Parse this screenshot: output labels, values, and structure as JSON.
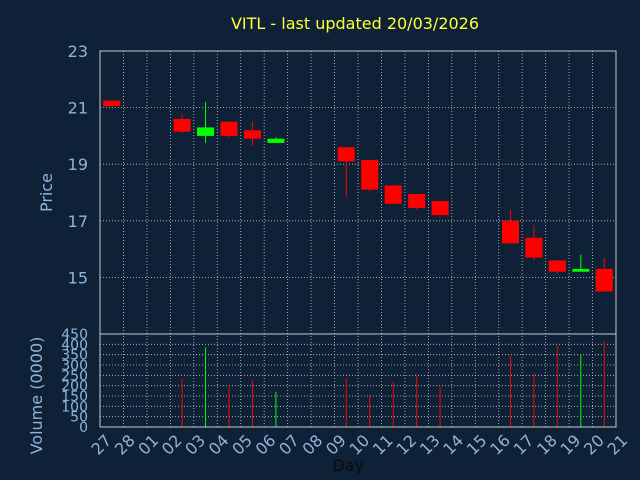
{
  "chart_data": {
    "type": "candlestick",
    "title": "VITL - last updated 20/03/2026",
    "xlabel": "Day",
    "price_panel": {
      "ylabel": "Price",
      "ylim": [
        13,
        23
      ],
      "yticks": [
        "15",
        "17",
        "19",
        "21",
        "23"
      ]
    },
    "volume_panel": {
      "ylabel": "Volume (0000)",
      "ylim": [
        0,
        450
      ],
      "yticks": [
        "0",
        "50",
        "100",
        "150",
        "200",
        "250",
        "300",
        "350",
        "400",
        "450"
      ]
    },
    "x_ticks": [
      "27",
      "28",
      "01",
      "02",
      "03",
      "04",
      "05",
      "06",
      "07",
      "08",
      "09",
      "10",
      "11",
      "12",
      "13",
      "14",
      "15",
      "16",
      "17",
      "18",
      "19",
      "20",
      "21"
    ],
    "grid": true,
    "colors": {
      "background": "#0f2136",
      "grid": "#c8c8c8",
      "frame": "#c8c8c8",
      "up": "#00ff00",
      "down": "#ff0000",
      "text": "#8fb4d9",
      "title": "#ffff3a"
    },
    "candles": [
      {
        "x": 0,
        "open": 21.25,
        "high": 21.25,
        "low": 21.05,
        "close": 21.05,
        "volume": 0
      },
      {
        "x": 3,
        "open": 20.6,
        "high": 20.75,
        "low": 20.1,
        "close": 20.15,
        "volume": 235
      },
      {
        "x": 4,
        "open": 20.0,
        "high": 21.2,
        "low": 19.75,
        "close": 20.3,
        "volume": 385
      },
      {
        "x": 5,
        "open": 20.5,
        "high": 20.5,
        "low": 19.95,
        "close": 20.0,
        "volume": 195
      },
      {
        "x": 6,
        "open": 20.2,
        "high": 20.5,
        "low": 19.65,
        "close": 19.9,
        "volume": 225
      },
      {
        "x": 7,
        "open": 19.75,
        "high": 19.95,
        "low": 19.75,
        "close": 19.9,
        "volume": 170
      },
      {
        "x": 10,
        "open": 19.6,
        "high": 19.6,
        "low": 17.85,
        "close": 19.1,
        "volume": 235
      },
      {
        "x": 11,
        "open": 19.15,
        "high": 19.15,
        "low": 18.05,
        "close": 18.1,
        "volume": 155
      },
      {
        "x": 12,
        "open": 18.25,
        "high": 18.25,
        "low": 17.6,
        "close": 17.6,
        "volume": 220
      },
      {
        "x": 13,
        "open": 17.95,
        "high": 17.95,
        "low": 17.4,
        "close": 17.45,
        "volume": 250
      },
      {
        "x": 14,
        "open": 17.7,
        "high": 17.7,
        "low": 17.15,
        "close": 17.2,
        "volume": 195
      },
      {
        "x": 17,
        "open": 17.0,
        "high": 17.4,
        "low": 16.2,
        "close": 16.2,
        "volume": 345
      },
      {
        "x": 18,
        "open": 16.4,
        "high": 16.85,
        "low": 15.6,
        "close": 15.7,
        "volume": 260
      },
      {
        "x": 19,
        "open": 15.6,
        "high": 15.6,
        "low": 15.15,
        "close": 15.2,
        "volume": 395
      },
      {
        "x": 20,
        "open": 15.2,
        "high": 15.8,
        "low": 15.2,
        "close": 15.3,
        "volume": 350
      },
      {
        "x": 21,
        "open": 15.3,
        "high": 15.7,
        "low": 14.5,
        "close": 14.5,
        "volume": 415
      }
    ]
  }
}
